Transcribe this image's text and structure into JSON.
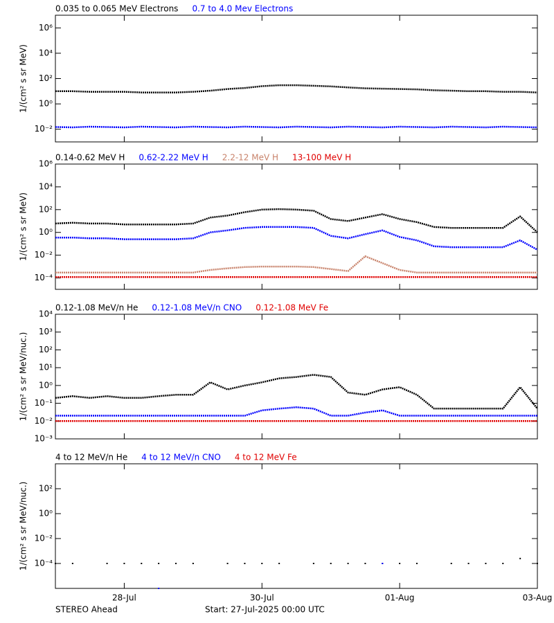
{
  "chart_data": [
    {
      "type": "line",
      "log_y": true,
      "ylabel": "1/(cm² s sr MeV)",
      "x": [
        0,
        0.25,
        0.5,
        0.75,
        1,
        1.25,
        1.5,
        1.75,
        2,
        2.25,
        2.5,
        2.75,
        3,
        3.25,
        3.5,
        3.75,
        4,
        4.25,
        4.5,
        4.75,
        5,
        5.25,
        5.5,
        5.75,
        6,
        6.25,
        6.5,
        6.75,
        7
      ],
      "xlim": [
        0,
        7
      ],
      "ylim": [
        0.001,
        10000000
      ],
      "yticks": [
        {
          "value": 0.01,
          "label": "10⁻²"
        },
        {
          "value": 1,
          "label": "10⁰"
        },
        {
          "value": 100,
          "label": "10²"
        },
        {
          "value": 10000,
          "label": "10⁴"
        },
        {
          "value": 1000000,
          "label": "10⁶"
        }
      ],
      "series": [
        {
          "name": "0.035 to 0.065 MeV Electrons",
          "color": "#000000",
          "values": [
            10,
            10,
            9,
            9,
            9,
            8,
            8,
            8,
            9,
            11,
            15,
            18,
            25,
            30,
            30,
            27,
            24,
            20,
            17,
            16,
            15,
            14,
            12,
            11,
            10,
            10,
            9,
            9,
            8
          ]
        },
        {
          "name": "0.7 to 4.0 Mev Electrons",
          "color": "#0000ff",
          "values": [
            0.015,
            0.014,
            0.016,
            0.015,
            0.014,
            0.016,
            0.015,
            0.014,
            0.016,
            0.015,
            0.014,
            0.016,
            0.015,
            0.014,
            0.016,
            0.015,
            0.014,
            0.016,
            0.015,
            0.014,
            0.016,
            0.015,
            0.014,
            0.016,
            0.015,
            0.014,
            0.016,
            0.015,
            0.014
          ]
        }
      ]
    },
    {
      "type": "line",
      "log_y": true,
      "ylabel": "1/(cm² s sr MeV)",
      "x": [
        0,
        0.25,
        0.5,
        0.75,
        1,
        1.25,
        1.5,
        1.75,
        2,
        2.25,
        2.5,
        2.75,
        3,
        3.25,
        3.5,
        3.75,
        4,
        4.25,
        4.5,
        4.75,
        5,
        5.25,
        5.5,
        5.75,
        6,
        6.25,
        6.5,
        6.75,
        7
      ],
      "xlim": [
        0,
        7
      ],
      "ylim": [
        1e-05,
        1000000
      ],
      "yticks": [
        {
          "value": 0.0001,
          "label": "10⁻⁴"
        },
        {
          "value": 0.01,
          "label": "10⁻²"
        },
        {
          "value": 1,
          "label": "10⁰"
        },
        {
          "value": 100,
          "label": "10²"
        },
        {
          "value": 10000,
          "label": "10⁴"
        },
        {
          "value": 1000000,
          "label": "10⁶"
        }
      ],
      "series": [
        {
          "name": "0.14-0.62 MeV H",
          "color": "#000000",
          "values": [
            6,
            7,
            6,
            6,
            5,
            5,
            5,
            5,
            6,
            20,
            30,
            60,
            100,
            110,
            100,
            80,
            15,
            10,
            20,
            40,
            15,
            8,
            3,
            2.5,
            2.5,
            2.5,
            2.5,
            25,
            1
          ]
        },
        {
          "name": "0.62-2.22 MeV H",
          "color": "#0000ff",
          "values": [
            0.35,
            0.35,
            0.3,
            0.3,
            0.25,
            0.25,
            0.25,
            0.25,
            0.3,
            1,
            1.5,
            2.5,
            3,
            3,
            3,
            2.5,
            0.5,
            0.3,
            0.7,
            1.5,
            0.4,
            0.2,
            0.06,
            0.05,
            0.05,
            0.05,
            0.05,
            0.2,
            0.03
          ]
        },
        {
          "name": "2.2-12 MeV H",
          "color": "#c8826a",
          "values": [
            0.0003,
            0.0003,
            0.0003,
            0.0003,
            0.0003,
            0.0003,
            0.0003,
            0.0003,
            0.0003,
            0.0005,
            0.0007,
            0.0009,
            0.001,
            0.001,
            0.001,
            0.0009,
            0.0006,
            0.0004,
            0.008,
            0.002,
            0.0005,
            0.0003,
            0.0003,
            0.0003,
            0.0003,
            0.0003,
            0.0003,
            0.0003,
            0.0003
          ]
        },
        {
          "name": "13-100 MeV H",
          "color": "#e00000",
          "values": [
            0.00012,
            0.00012,
            0.00012,
            0.00012,
            0.00012,
            0.00012,
            0.00012,
            0.00012,
            0.00012,
            0.00012,
            0.00012,
            0.00012,
            0.00012,
            0.00012,
            0.00012,
            0.00012,
            0.00012,
            0.00012,
            0.00012,
            0.00012,
            0.00012,
            0.00012,
            0.00012,
            0.00012,
            0.00012,
            0.00012,
            0.00012,
            0.00012,
            0.00012
          ]
        }
      ]
    },
    {
      "type": "line",
      "log_y": true,
      "ylabel": "1/(cm² s sr MeV/nuc.)",
      "x": [
        0,
        0.25,
        0.5,
        0.75,
        1,
        1.25,
        1.5,
        1.75,
        2,
        2.25,
        2.5,
        2.75,
        3,
        3.25,
        3.5,
        3.75,
        4,
        4.25,
        4.5,
        4.75,
        5,
        5.25,
        5.5,
        5.75,
        6,
        6.25,
        6.5,
        6.75,
        7
      ],
      "xlim": [
        0,
        7
      ],
      "ylim": [
        0.001,
        10000
      ],
      "yticks": [
        {
          "value": 0.001,
          "label": "10⁻³"
        },
        {
          "value": 0.01,
          "label": "10⁻²"
        },
        {
          "value": 0.1,
          "label": "10⁻¹"
        },
        {
          "value": 1,
          "label": "10⁰"
        },
        {
          "value": 10,
          "label": "10¹"
        },
        {
          "value": 100,
          "label": "10²"
        },
        {
          "value": 1000,
          "label": "10³"
        },
        {
          "value": 10000,
          "label": "10⁴"
        }
      ],
      "series": [
        {
          "name": "0.12-1.08 MeV/n He",
          "color": "#000000",
          "values": [
            0.2,
            0.25,
            0.2,
            0.25,
            0.2,
            0.2,
            0.25,
            0.3,
            0.3,
            1.5,
            0.6,
            1,
            1.5,
            2.5,
            3,
            4,
            3,
            0.4,
            0.3,
            0.6,
            0.8,
            0.3,
            0.05,
            0.05,
            0.05,
            0.05,
            0.05,
            0.8,
            0.05
          ]
        },
        {
          "name": "0.12-1.08 MeV/n CNO",
          "color": "#0000ff",
          "values": [
            0.02,
            0.02,
            0.02,
            0.02,
            0.02,
            0.02,
            0.02,
            0.02,
            0.02,
            0.02,
            0.02,
            0.02,
            0.04,
            0.05,
            0.06,
            0.05,
            0.02,
            0.02,
            0.03,
            0.04,
            0.02,
            0.02,
            0.02,
            0.02,
            0.02,
            0.02,
            0.02,
            0.02,
            0.02
          ]
        },
        {
          "name": "0.12-1.08 MeV Fe",
          "color": "#e00000",
          "values": [
            0.01,
            0.01,
            0.01,
            0.01,
            0.01,
            0.01,
            0.01,
            0.01,
            0.01,
            0.01,
            0.01,
            0.01,
            0.01,
            0.01,
            0.01,
            0.01,
            0.01,
            0.01,
            0.01,
            0.01,
            0.01,
            0.01,
            0.01,
            0.01,
            0.01,
            0.01,
            0.01,
            0.01,
            0.01
          ]
        }
      ]
    },
    {
      "type": "scatter",
      "log_y": true,
      "ylabel": "1/(cm² s sr MeV/nuc.)",
      "x": [
        0,
        0.25,
        0.5,
        0.75,
        1,
        1.25,
        1.5,
        1.75,
        2,
        2.25,
        2.5,
        2.75,
        3,
        3.25,
        3.5,
        3.75,
        4,
        4.25,
        4.5,
        4.75,
        5,
        5.25,
        5.5,
        5.75,
        6,
        6.25,
        6.5,
        6.75,
        7
      ],
      "xlim": [
        0,
        7
      ],
      "ylim": [
        1e-06,
        10000
      ],
      "xticks": [
        {
          "value": 1,
          "label": "28-Jul"
        },
        {
          "value": 3,
          "label": "30-Jul"
        },
        {
          "value": 5,
          "label": "01-Aug"
        },
        {
          "value": 7,
          "label": "03-Aug"
        }
      ],
      "yticks": [
        {
          "value": 0.0001,
          "label": "10⁻⁴"
        },
        {
          "value": 0.01,
          "label": "10⁻²"
        },
        {
          "value": 1,
          "label": "10⁰"
        },
        {
          "value": 100,
          "label": "10²"
        }
      ],
      "series": [
        {
          "name": "4 to 12 MeV/n He",
          "color": "#000000",
          "values": [
            0.0001,
            0.0001,
            null,
            0.0001,
            0.0001,
            0.0001,
            0.0001,
            0.0001,
            0.0001,
            null,
            0.0001,
            0.0001,
            0.0001,
            0.0001,
            null,
            0.0001,
            0.0001,
            0.0001,
            0.0001,
            0.0001,
            0.0001,
            0.0001,
            null,
            0.0001,
            0.0001,
            0.0001,
            0.0001,
            0.00025,
            0.0001
          ]
        },
        {
          "name": "4 to 12 MeV/n CNO",
          "color": "#0000ff",
          "values": [
            null,
            null,
            null,
            null,
            null,
            null,
            1e-06,
            null,
            null,
            null,
            null,
            null,
            null,
            null,
            null,
            null,
            null,
            null,
            null,
            0.0001,
            null,
            null,
            null,
            null,
            null,
            null,
            null,
            null,
            null
          ]
        },
        {
          "name": "4 to 12 MeV Fe",
          "color": "#e00000",
          "values": [
            null,
            null,
            null,
            null,
            null,
            null,
            null,
            null,
            null,
            null,
            null,
            null,
            null,
            null,
            null,
            null,
            null,
            null,
            null,
            null,
            null,
            null,
            null,
            null,
            null,
            null,
            null,
            null,
            null
          ]
        }
      ]
    }
  ],
  "footer": {
    "left": "STEREO Ahead",
    "center": "Start: 27-Jul-2025 00:00 UTC"
  }
}
